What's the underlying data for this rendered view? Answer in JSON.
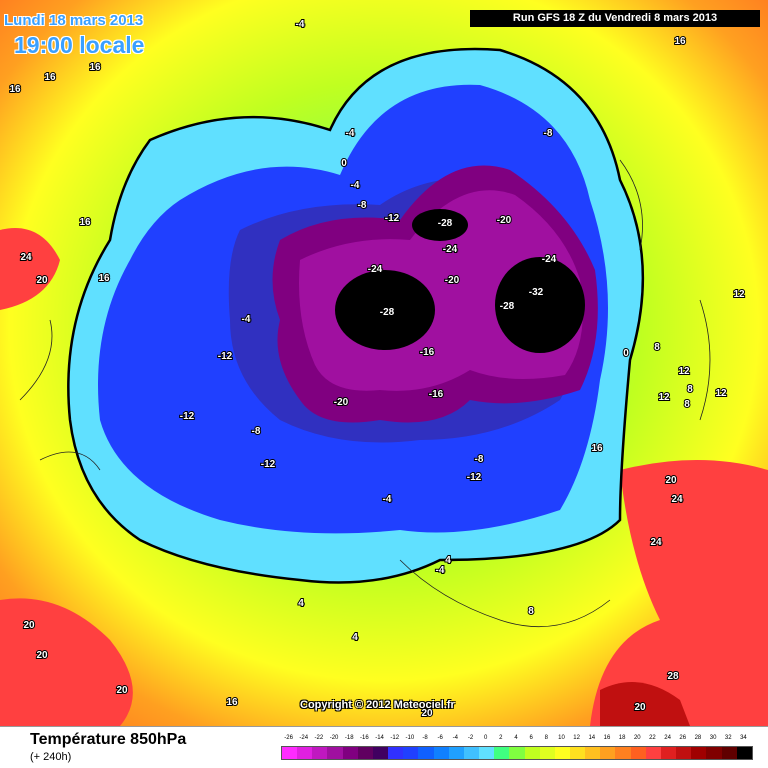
{
  "header": {
    "date": "Lundi 18 mars 2013",
    "time": "19:00 locale",
    "run": "Run GFS 18 Z du Vendredi 8 mars 2013"
  },
  "copyright": "Copyright © 2012 Meteociel.fr",
  "footer": {
    "title": "Température 850hPa",
    "subtitle": "(+ 240h)"
  },
  "legend": {
    "values": [
      "-26",
      "-24",
      "-22",
      "-20",
      "-18",
      "-16",
      "-14",
      "-12",
      "-10",
      "-8",
      "-6",
      "-4",
      "-2",
      "0",
      "2",
      "4",
      "6",
      "8",
      "10",
      "12",
      "14",
      "16",
      "18",
      "20",
      "22",
      "24",
      "26",
      "28",
      "30",
      "32",
      "34"
    ],
    "colors": [
      "#ff2bff",
      "#e020e0",
      "#c018c0",
      "#a010a0",
      "#800080",
      "#600060",
      "#400060",
      "#3030ff",
      "#2040ff",
      "#1060ff",
      "#1080ff",
      "#20a0ff",
      "#40c0ff",
      "#60e0ff",
      "#40ff80",
      "#80ff40",
      "#c0ff20",
      "#e0ff20",
      "#ffff20",
      "#ffe020",
      "#ffc020",
      "#ffa020",
      "#ff8020",
      "#ff6020",
      "#ff4040",
      "#e02020",
      "#c01010",
      "#a00000",
      "#800000",
      "#600000",
      "#000000"
    ]
  },
  "map_labels": [
    {
      "text": "-4"
    },
    {
      "text": "16"
    },
    {
      "text": "16"
    },
    {
      "text": "16"
    },
    {
      "text": "16"
    },
    {
      "text": "-4"
    },
    {
      "text": "0"
    },
    {
      "text": "-4"
    },
    {
      "text": "-8"
    },
    {
      "text": "-12"
    },
    {
      "text": "-8"
    },
    {
      "text": "-28"
    },
    {
      "text": "-20"
    },
    {
      "text": "-24"
    },
    {
      "text": "-24"
    },
    {
      "text": "-24"
    },
    {
      "text": "-20"
    },
    {
      "text": "-32"
    },
    {
      "text": "-28"
    },
    {
      "text": "-28"
    },
    {
      "text": "16"
    },
    {
      "text": "24"
    },
    {
      "text": "20"
    },
    {
      "text": "16"
    },
    {
      "text": "-4"
    },
    {
      "text": "-12"
    },
    {
      "text": "-16"
    },
    {
      "text": "-16"
    },
    {
      "text": "-20"
    },
    {
      "text": "-12"
    },
    {
      "text": "-8"
    },
    {
      "text": "-12"
    },
    {
      "text": "-8"
    },
    {
      "text": "-12"
    },
    {
      "text": "-4"
    },
    {
      "text": "12"
    },
    {
      "text": "0"
    },
    {
      "text": "8"
    },
    {
      "text": "12"
    },
    {
      "text": "8"
    },
    {
      "text": "12"
    },
    {
      "text": "8"
    },
    {
      "text": "12"
    },
    {
      "text": "16"
    },
    {
      "text": "20"
    },
    {
      "text": "24"
    },
    {
      "text": "4"
    },
    {
      "text": "-4"
    },
    {
      "text": "4"
    },
    {
      "text": "8"
    },
    {
      "text": "4"
    },
    {
      "text": "20"
    },
    {
      "text": "20"
    },
    {
      "text": "20"
    },
    {
      "text": "16"
    },
    {
      "text": "20"
    },
    {
      "text": "24"
    },
    {
      "text": "28"
    },
    {
      "text": "20"
    }
  ]
}
